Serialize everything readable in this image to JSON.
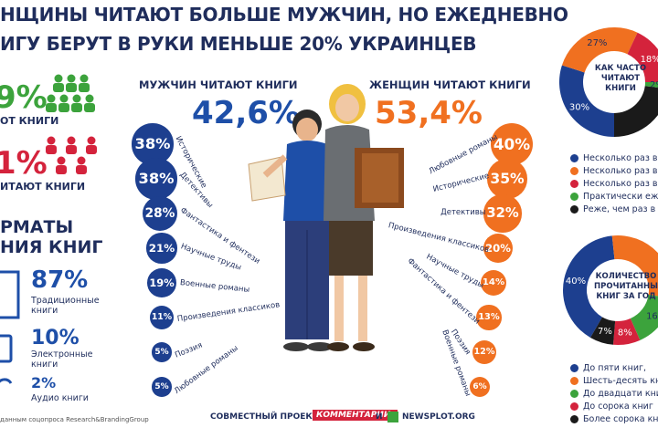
{
  "title": {
    "line1": "НЩИНЫ ЧИТАЮТ БОЛЬШЕ МУЖЧИН, НО ЕЖЕДНЕВНО",
    "line2": "ИГУ БЕРУТ В РУКИ МЕНЬШЕ 20% УКРАИНЦЕВ"
  },
  "left": {
    "green_value": "9%",
    "green_label": "ОТ КНИГИ",
    "red_value": "1%",
    "red_label": "ИТАЮТ КНИГИ",
    "formats_title_1": "РМАТЫ",
    "formats_title_2": "НИЯ КНИГ",
    "formats": [
      {
        "value": "87%",
        "label1": "Традиционные",
        "label2": "книги"
      },
      {
        "value": "10%",
        "label1": "Электронные",
        "label2": "книги"
      },
      {
        "value": "2%",
        "label1": "Аудио книги",
        "label2": ""
      }
    ],
    "source": "данным соцопроса Research&BrandingGroup"
  },
  "men": {
    "header": "МУЖЧИН ЧИТАЮТ КНИГИ",
    "value": "42,6%"
  },
  "women": {
    "header": "ЖЕНЩИН ЧИТАЮТ КНИГИ",
    "value": "53,4%"
  },
  "chart_data": [
    {
      "type": "bar",
      "title": "МУЖЧИН ЧИТАЮТ КНИГИ",
      "categories": [
        "Исторические",
        "Детективы",
        "Фантастика и фентези",
        "Научные труды",
        "Военные романы",
        "Произведения классиков",
        "Поэзия",
        "Любовные романы"
      ],
      "values": [
        38,
        38,
        28,
        21,
        19,
        11,
        5,
        5
      ],
      "labels": [
        "38%",
        "38%",
        "28%",
        "21%",
        "19%",
        "11%",
        "5%",
        "5%"
      ],
      "color": "#1d3f8f"
    },
    {
      "type": "bar",
      "title": "ЖЕНЩИН ЧИТАЮТ КНИГИ",
      "categories": [
        "Любовные романы",
        "Исторические",
        "Детективы",
        "Произведения классиков",
        "Научные труды",
        "Фантастика и фентези",
        "Поэзия",
        "Военные романы"
      ],
      "values": [
        40,
        35,
        32,
        20,
        14,
        13,
        12,
        6
      ],
      "labels": [
        "40%",
        "35%",
        "32%",
        "20%",
        "14%",
        "13%",
        "12%",
        "6%"
      ],
      "color": "#f07020"
    },
    {
      "type": "pie",
      "title": "КАК ЧАСТО ЧИТАЮТ КНИГИ",
      "categories": [
        "Несколько раз в",
        "Несколько раз в",
        "Несколько раз в",
        "Практически еже",
        "Реже, чем раз в"
      ],
      "values": [
        30,
        27,
        18,
        2,
        23
      ],
      "slice_labels": [
        "30%",
        "27%",
        "18%",
        "2%",
        ""
      ],
      "colors": [
        "#1d3f8f",
        "#f07020",
        "#d4233c",
        "#3ca33c",
        "#1a1a1a"
      ]
    },
    {
      "type": "pie",
      "title": "КОЛИЧЕСТВО ПРОЧИТАННЫХ КНИГ ЗА ГОД",
      "categories": [
        "До пяти книг,",
        "Шесть-десять кни",
        "До двадцати книг",
        "До сорока книг",
        "Более сорока книг"
      ],
      "values": [
        40,
        29,
        16,
        8,
        7
      ],
      "slice_labels": [
        "40%",
        "",
        "16",
        "8%",
        "7%"
      ],
      "colors": [
        "#1d3f8f",
        "#f07020",
        "#3ca33c",
        "#d4233c",
        "#1a1a1a"
      ]
    }
  ],
  "donut1": {
    "center": [
      "КАК ЧАСТО",
      "ЧИТАЮТ",
      "КНИГИ"
    ]
  },
  "donut2": {
    "center": [
      "КОЛИЧЕСТВО",
      "ПРОЧИТАННЫХ",
      "КНИГ ЗА ГОД"
    ]
  },
  "footer": {
    "project": "СОВМЕСТНЫЙ ПРОЕКТ",
    "brand1": "КОММЕНТАРИИ.",
    "and": "И",
    "brand2": "NEWSPLOT.ORG"
  }
}
